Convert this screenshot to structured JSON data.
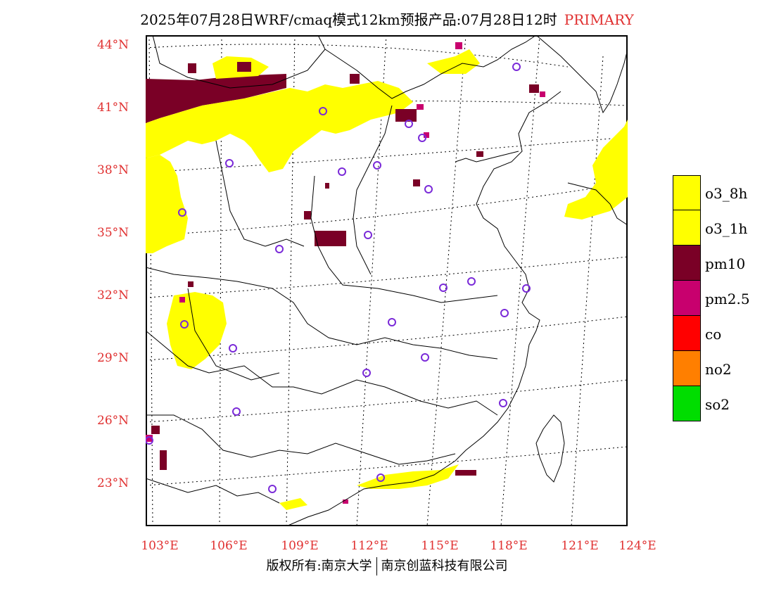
{
  "header": {
    "title": "2025年07月28日WRF/cmaq模式12km预报产品:07月28日12时",
    "badge": "PRIMARY",
    "badge_color": "#e03030"
  },
  "map": {
    "lat_labels": [
      "44°N",
      "41°N",
      "38°N",
      "35°N",
      "32°N",
      "29°N",
      "26°N",
      "23°N"
    ],
    "lon_labels": [
      "103°E",
      "106°E",
      "109°E",
      "112°E",
      "115°E",
      "118°E",
      "121°E",
      "124°E"
    ],
    "label_color": "#e03030",
    "extent": {
      "lon_min": 102.8,
      "lon_max": 124,
      "lat_min": 21.0,
      "lat_max": 44.6
    }
  },
  "legend": {
    "items": [
      {
        "label": "o3_8h",
        "color": "#ffff00"
      },
      {
        "label": "o3_1h",
        "color": "#ffff00"
      },
      {
        "label": "pm10",
        "color": "#7a0026"
      },
      {
        "label": "pm2.5",
        "color": "#c8006e"
      },
      {
        "label": "co",
        "color": "#ff0000"
      },
      {
        "label": "no2",
        "color": "#ff7f00"
      },
      {
        "label": "so2",
        "color": "#00dd00"
      }
    ]
  },
  "footer": {
    "left": "版权所有:南京大学",
    "right": "南京创蓝科技有限公司"
  }
}
